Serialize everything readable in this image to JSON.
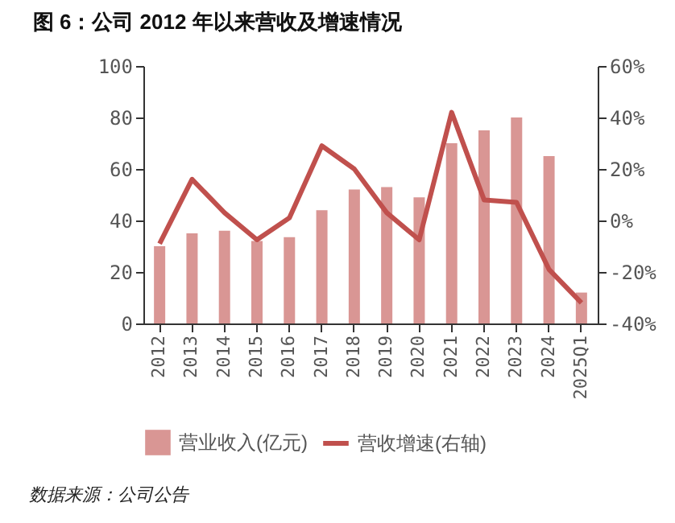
{
  "chart_data": {
    "type": "bar",
    "title": "图 6：公司 2012 年以来营收及增速情况",
    "categories": [
      "2012",
      "2013",
      "2014",
      "2015",
      "2016",
      "2017",
      "2018",
      "2019",
      "2020",
      "2021",
      "2022",
      "2023",
      "2024",
      "2025Q1"
    ],
    "series": [
      {
        "name": "营业收入(亿元)",
        "color": "#d99694",
        "values": [
          30,
          35,
          36,
          32,
          33.5,
          44,
          52,
          53,
          49,
          70,
          75,
          80,
          65,
          12
        ]
      },
      {
        "name": "营收增速(右轴)",
        "type": "line",
        "axis": "y2",
        "color": "#c0504d",
        "values": [
          -9,
          16,
          3,
          -7.5,
          1,
          29,
          20,
          3,
          -7.5,
          42,
          8,
          7,
          -19,
          -32
        ]
      }
    ],
    "ylim": [
      0,
      100
    ],
    "yticks": [
      0,
      20,
      40,
      60,
      80,
      100
    ],
    "y2lim": [
      -40,
      60
    ],
    "y2ticks": [
      {
        "value": -40,
        "label": "-40%"
      },
      {
        "value": -20,
        "label": "-20%"
      },
      {
        "value": 0,
        "label": "0%"
      },
      {
        "value": 20,
        "label": "20%"
      },
      {
        "value": 40,
        "label": "40%"
      },
      {
        "value": 60,
        "label": "60%"
      }
    ],
    "grid": false,
    "legend": "bottom",
    "marker": "none",
    "line_style": "solid",
    "annotations": [
      "数据来源：公司公告"
    ]
  }
}
